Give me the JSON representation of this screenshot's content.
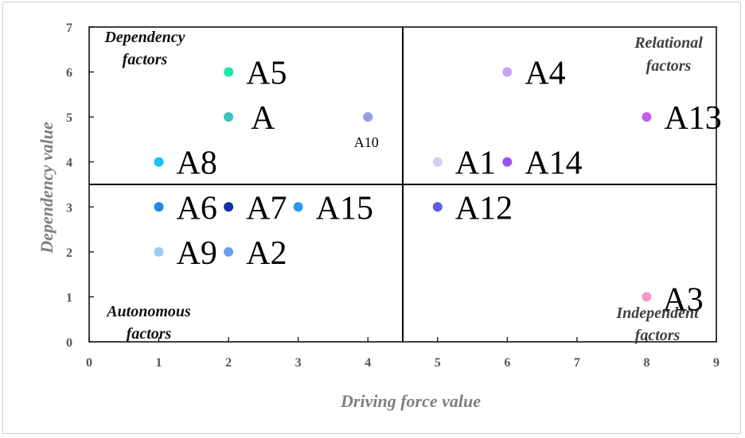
{
  "chart_data": {
    "type": "scatter",
    "xlabel": "Driving force value",
    "ylabel": "Dependency value",
    "xlim": [
      0,
      9
    ],
    "ylim": [
      0,
      7
    ],
    "xticks": [
      "0",
      "1",
      "2",
      "3",
      "4",
      "5",
      "6",
      "7",
      "8",
      "9"
    ],
    "yticks": [
      "0",
      "1",
      "2",
      "3",
      "4",
      "5",
      "6",
      "7"
    ],
    "grid": false,
    "quadrant_dividers": {
      "x": 4.5,
      "y": 3.5
    },
    "quadrant_labels": [
      {
        "name": "dependency",
        "lines": [
          "Dependency",
          "factors"
        ],
        "position": "top-left"
      },
      {
        "name": "relational",
        "lines": [
          "Relational",
          "factors"
        ],
        "position": "top-right"
      },
      {
        "name": "autonomous",
        "lines": [
          "Autonomous",
          "factors"
        ],
        "position": "bottom-left"
      },
      {
        "name": "independent",
        "lines": [
          "Independent",
          "factors"
        ],
        "position": "bottom-right"
      }
    ],
    "points": [
      {
        "label": "A5",
        "x": 2,
        "y": 6,
        "color": "#1de9a0",
        "label_size": "large"
      },
      {
        "label": "A",
        "x": 2,
        "y": 5,
        "color": "#3cc4c4",
        "label_size": "large"
      },
      {
        "label": "A10",
        "x": 4,
        "y": 5,
        "color": "#9b9bea",
        "label_size": "small"
      },
      {
        "label": "A8",
        "x": 1,
        "y": 4,
        "color": "#12c8f3",
        "label_size": "large"
      },
      {
        "label": "A6",
        "x": 1,
        "y": 3,
        "color": "#1e88e5",
        "label_size": "large"
      },
      {
        "label": "A7",
        "x": 2,
        "y": 3,
        "color": "#0d2fa8",
        "label_size": "large"
      },
      {
        "label": "A15",
        "x": 3,
        "y": 3,
        "color": "#2a98f0",
        "label_size": "large"
      },
      {
        "label": "A9",
        "x": 1,
        "y": 2,
        "color": "#9ccaf5",
        "label_size": "large"
      },
      {
        "label": "A2",
        "x": 2,
        "y": 2,
        "color": "#6aa0f0",
        "label_size": "large"
      },
      {
        "label": "A4",
        "x": 6,
        "y": 6,
        "color": "#c9a2f0",
        "label_size": "large"
      },
      {
        "label": "A13",
        "x": 8,
        "y": 5,
        "color": "#c45cf0",
        "label_size": "large"
      },
      {
        "label": "A1",
        "x": 5,
        "y": 4,
        "color": "#cfcff7",
        "label_size": "large"
      },
      {
        "label": "A14",
        "x": 6,
        "y": 4,
        "color": "#9a52ee",
        "label_size": "large"
      },
      {
        "label": "A12",
        "x": 5,
        "y": 3,
        "color": "#5e5ee8",
        "label_size": "large"
      },
      {
        "label": "A3",
        "x": 8,
        "y": 1,
        "color": "#f59ac8",
        "label_size": "large"
      }
    ]
  }
}
